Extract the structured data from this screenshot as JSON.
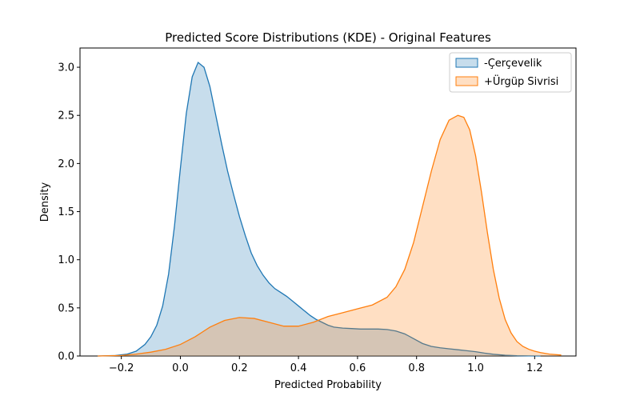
{
  "chart_data": {
    "type": "area",
    "title": "Predicted Score Distributions (KDE) - Original Features",
    "xlabel": "Predicted Probability",
    "ylabel": "Density",
    "xlim": [
      -0.34,
      1.34
    ],
    "ylim": [
      0,
      3.2
    ],
    "xticks": [
      -0.2,
      0.0,
      0.2,
      0.4,
      0.6,
      0.8,
      1.0,
      1.2
    ],
    "xtick_labels": [
      "−0.2",
      "0.0",
      "0.2",
      "0.4",
      "0.6",
      "0.8",
      "1.0",
      "1.2"
    ],
    "yticks": [
      0.0,
      0.5,
      1.0,
      1.5,
      2.0,
      2.5,
      3.0
    ],
    "ytick_labels": [
      "0.0",
      "0.5",
      "1.0",
      "1.5",
      "2.0",
      "2.5",
      "3.0"
    ],
    "grid": false,
    "legend_position": "top-right",
    "series": [
      {
        "name": "-Çerçevelik",
        "color": "#1f77b4",
        "fill": "#c6dbef",
        "x": [
          -0.28,
          -0.22,
          -0.18,
          -0.15,
          -0.12,
          -0.1,
          -0.08,
          -0.06,
          -0.04,
          -0.02,
          0.0,
          0.02,
          0.04,
          0.06,
          0.08,
          0.1,
          0.12,
          0.14,
          0.16,
          0.18,
          0.2,
          0.22,
          0.24,
          0.26,
          0.28,
          0.3,
          0.32,
          0.34,
          0.36,
          0.38,
          0.4,
          0.42,
          0.44,
          0.46,
          0.48,
          0.5,
          0.52,
          0.55,
          0.58,
          0.61,
          0.64,
          0.67,
          0.7,
          0.73,
          0.76,
          0.79,
          0.82,
          0.85,
          0.88,
          0.91,
          0.94,
          0.97,
          1.0,
          1.03,
          1.06,
          1.1,
          1.14,
          1.18,
          1.22
        ],
        "y": [
          0.0,
          0.005,
          0.02,
          0.05,
          0.12,
          0.2,
          0.32,
          0.52,
          0.85,
          1.35,
          1.95,
          2.52,
          2.9,
          3.05,
          3.0,
          2.8,
          2.5,
          2.2,
          1.92,
          1.68,
          1.45,
          1.25,
          1.07,
          0.94,
          0.84,
          0.76,
          0.7,
          0.66,
          0.62,
          0.57,
          0.52,
          0.47,
          0.42,
          0.38,
          0.35,
          0.32,
          0.3,
          0.29,
          0.285,
          0.28,
          0.28,
          0.28,
          0.275,
          0.26,
          0.23,
          0.18,
          0.13,
          0.1,
          0.085,
          0.075,
          0.065,
          0.055,
          0.045,
          0.03,
          0.018,
          0.008,
          0.003,
          0.001,
          0.0
        ]
      },
      {
        "name": "+Ürgüp Sivrisi",
        "color": "#ff7f0e",
        "fill": "#fdd5b1",
        "x": [
          -0.28,
          -0.2,
          -0.15,
          -0.1,
          -0.05,
          0.0,
          0.05,
          0.1,
          0.15,
          0.2,
          0.25,
          0.3,
          0.35,
          0.4,
          0.45,
          0.5,
          0.55,
          0.6,
          0.65,
          0.7,
          0.73,
          0.76,
          0.79,
          0.82,
          0.85,
          0.88,
          0.91,
          0.94,
          0.96,
          0.98,
          1.0,
          1.02,
          1.04,
          1.06,
          1.08,
          1.1,
          1.12,
          1.14,
          1.16,
          1.18,
          1.2,
          1.22,
          1.25,
          1.29
        ],
        "y": [
          0.0,
          0.005,
          0.02,
          0.04,
          0.07,
          0.12,
          0.2,
          0.3,
          0.37,
          0.4,
          0.39,
          0.35,
          0.31,
          0.31,
          0.35,
          0.41,
          0.45,
          0.49,
          0.53,
          0.61,
          0.72,
          0.9,
          1.18,
          1.55,
          1.92,
          2.25,
          2.45,
          2.5,
          2.48,
          2.35,
          2.08,
          1.7,
          1.28,
          0.9,
          0.6,
          0.38,
          0.24,
          0.15,
          0.1,
          0.07,
          0.05,
          0.035,
          0.02,
          0.01
        ]
      }
    ]
  }
}
